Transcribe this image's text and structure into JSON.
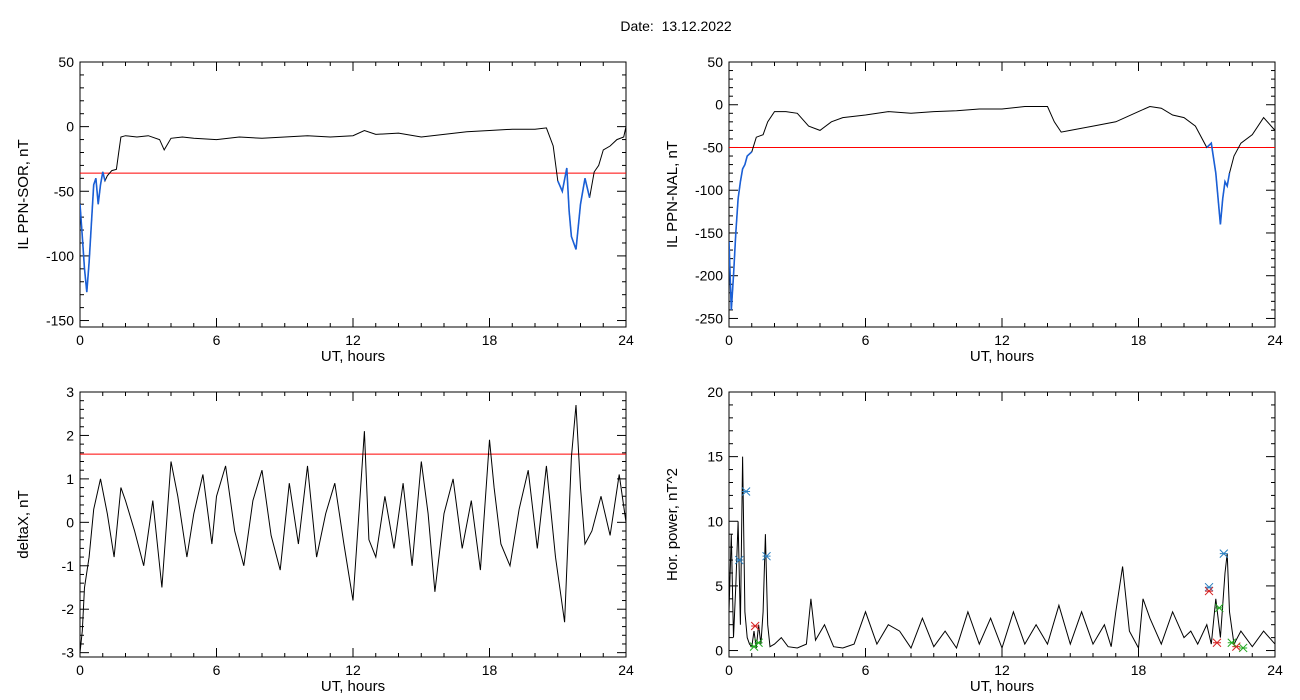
{
  "title": "Date:  13.12.2022",
  "colors": {
    "trace": "#000000",
    "threshold": "#ff0000",
    "highlight": "#1a5fd6",
    "marker_blue": "#2a7fc0",
    "marker_red": "#d62020",
    "marker_green": "#22aa22"
  },
  "chart_data": [
    {
      "type": "line",
      "ylabel": "IL PPN-SOR, nT",
      "xlabel": "UT, hours",
      "xlim": [
        0,
        24
      ],
      "ylim": [
        -155,
        50
      ],
      "xticks": [
        0,
        6,
        12,
        18,
        24
      ],
      "yticks": [
        -150,
        -100,
        -50,
        0,
        50
      ],
      "threshold": -36,
      "series": [
        {
          "x": [
            0,
            0.1,
            0.2,
            0.3,
            0.4,
            0.5,
            0.6,
            0.7,
            0.8,
            0.9,
            1.0,
            1.1,
            1.2,
            1.4,
            1.6,
            1.7,
            1.8,
            2.0,
            2.5,
            3.0,
            3.5,
            3.7,
            4.0,
            4.5,
            5.0,
            6.0,
            7.0,
            8.0,
            9.0,
            10.0,
            11.0,
            12.0,
            12.5,
            13.0,
            14.0,
            15.0,
            16.0,
            17.0,
            18.0,
            19.0,
            20.0,
            20.5,
            20.8,
            21.0,
            21.2,
            21.4,
            21.5,
            21.6,
            21.8,
            22.0,
            22.2,
            22.4,
            22.6,
            22.8,
            23.0,
            23.3,
            23.6,
            23.9,
            24.0
          ],
          "y": [
            -60,
            -85,
            -110,
            -128,
            -105,
            -75,
            -45,
            -40,
            -60,
            -45,
            -35,
            -42,
            -38,
            -34,
            -33,
            -20,
            -8,
            -7,
            -8,
            -7,
            -10,
            -18,
            -9,
            -8,
            -9,
            -10,
            -8,
            -9,
            -8,
            -7,
            -8,
            -7,
            -3,
            -6,
            -5,
            -8,
            -6,
            -4,
            -3,
            -2,
            -2,
            -1,
            -15,
            -42,
            -50,
            -32,
            -65,
            -85,
            -95,
            -60,
            -40,
            -55,
            -35,
            -30,
            -18,
            -15,
            -10,
            -8,
            0
          ]
        }
      ],
      "highlight_series": [
        {
          "x": [
            0,
            0.1,
            0.2,
            0.3,
            0.4,
            0.5,
            0.6,
            0.7,
            0.8,
            0.9,
            1.0,
            1.1
          ],
          "y": [
            -60,
            -85,
            -110,
            -128,
            -105,
            -75,
            -45,
            -40,
            -60,
            -45,
            -35,
            -42
          ]
        },
        {
          "x": [
            21.0,
            21.2,
            21.4,
            21.5,
            21.6,
            21.8,
            22.0,
            22.2,
            22.4
          ],
          "y": [
            -42,
            -50,
            -32,
            -65,
            -85,
            -95,
            -60,
            -40,
            -55
          ]
        }
      ]
    },
    {
      "type": "line",
      "ylabel": "IL PPN-NAL, nT",
      "xlabel": "UT, hours",
      "xlim": [
        0,
        24
      ],
      "ylim": [
        -260,
        50
      ],
      "xticks": [
        0,
        6,
        12,
        18,
        24
      ],
      "yticks": [
        -250,
        -200,
        -150,
        -100,
        -50,
        0,
        50
      ],
      "threshold": -50,
      "series": [
        {
          "x": [
            0,
            0.1,
            0.2,
            0.3,
            0.4,
            0.5,
            0.6,
            0.7,
            0.8,
            1.0,
            1.2,
            1.5,
            1.7,
            2.0,
            2.5,
            3.0,
            3.5,
            4.0,
            4.5,
            5.0,
            6.0,
            7.0,
            8.0,
            9.0,
            10.0,
            11.0,
            12.0,
            13.0,
            14.0,
            14.3,
            14.6,
            15.0,
            16.0,
            17.0,
            18.0,
            18.5,
            19.0,
            19.5,
            20.0,
            20.5,
            21.0,
            21.2,
            21.4,
            21.6,
            21.7,
            21.8,
            21.9,
            22.0,
            22.2,
            22.5,
            23.0,
            23.5,
            24.0
          ],
          "y": [
            -160,
            -240,
            -200,
            -150,
            -110,
            -90,
            -75,
            -70,
            -60,
            -55,
            -38,
            -35,
            -20,
            -8,
            -8,
            -10,
            -25,
            -30,
            -20,
            -15,
            -12,
            -8,
            -10,
            -8,
            -7,
            -5,
            -5,
            -2,
            -2,
            -20,
            -32,
            -30,
            -25,
            -20,
            -8,
            -2,
            -4,
            -12,
            -15,
            -25,
            -50,
            -45,
            -80,
            -140,
            -110,
            -90,
            -95,
            -80,
            -60,
            -45,
            -35,
            -15,
            -30
          ]
        }
      ],
      "highlight_series": [
        {
          "x": [
            0,
            0.1,
            0.2,
            0.3,
            0.4,
            0.5,
            0.6,
            0.7,
            0.8,
            1.0
          ],
          "y": [
            -160,
            -240,
            -200,
            -150,
            -110,
            -90,
            -75,
            -70,
            -60,
            -55
          ]
        },
        {
          "x": [
            21.0,
            21.2,
            21.4,
            21.6,
            21.7,
            21.8,
            21.9,
            22.0
          ],
          "y": [
            -50,
            -45,
            -80,
            -140,
            -110,
            -90,
            -95,
            -80
          ]
        }
      ]
    },
    {
      "type": "line",
      "ylabel": "deltaX, nT",
      "xlabel": "UT, hours",
      "xlim": [
        0,
        24
      ],
      "ylim": [
        -3.1,
        3
      ],
      "xticks": [
        0,
        6,
        12,
        18,
        24
      ],
      "yticks": [
        -3,
        -2,
        -1,
        0,
        1,
        2,
        3
      ],
      "threshold": 1.57,
      "series": [
        {
          "x": [
            0,
            0.1,
            0.2,
            0.4,
            0.6,
            0.9,
            1.2,
            1.5,
            1.8,
            2.0,
            2.4,
            2.8,
            3.2,
            3.6,
            4.0,
            4.3,
            4.7,
            5.0,
            5.4,
            5.8,
            6.0,
            6.4,
            6.8,
            7.2,
            7.6,
            8.0,
            8.4,
            8.8,
            9.2,
            9.6,
            10.0,
            10.4,
            10.8,
            11.2,
            11.6,
            12.0,
            12.3,
            12.5,
            12.7,
            13.0,
            13.4,
            13.8,
            14.2,
            14.6,
            15.0,
            15.3,
            15.6,
            16.0,
            16.4,
            16.8,
            17.2,
            17.6,
            18.0,
            18.2,
            18.5,
            18.9,
            19.3,
            19.7,
            20.1,
            20.5,
            20.9,
            21.3,
            21.6,
            21.8,
            22.0,
            22.2,
            22.5,
            22.9,
            23.3,
            23.7,
            24.0
          ],
          "y": [
            -3.0,
            -2.5,
            -1.5,
            -0.8,
            0.3,
            1.0,
            0.2,
            -0.8,
            0.8,
            0.5,
            -0.2,
            -1.0,
            0.5,
            -1.5,
            1.4,
            0.6,
            -0.8,
            0.2,
            1.1,
            -0.5,
            0.6,
            1.3,
            -0.2,
            -1.0,
            0.5,
            1.2,
            -0.3,
            -1.1,
            0.9,
            -0.5,
            1.3,
            -0.8,
            0.2,
            0.9,
            -0.5,
            -1.8,
            0.5,
            2.1,
            -0.4,
            -0.8,
            0.6,
            -0.6,
            0.9,
            -1.0,
            1.4,
            0.2,
            -1.6,
            0.2,
            1.0,
            -0.6,
            0.5,
            -1.1,
            1.9,
            0.8,
            -0.5,
            -1.0,
            0.3,
            1.2,
            -0.6,
            1.3,
            -0.8,
            -2.3,
            1.5,
            2.7,
            0.8,
            -0.5,
            -0.2,
            0.6,
            -0.3,
            1.1,
            0.0
          ]
        }
      ]
    },
    {
      "type": "line",
      "ylabel": "Hor. power, nT^2",
      "xlabel": "UT, hours",
      "xlim": [
        0,
        24
      ],
      "ylim": [
        -0.5,
        20
      ],
      "xticks": [
        0,
        6,
        12,
        18,
        24
      ],
      "yticks": [
        0,
        5,
        10,
        15,
        20
      ],
      "series": [
        {
          "x": [
            0,
            0.1,
            0.2,
            0.3,
            0.4,
            0.5,
            0.6,
            0.7,
            0.8,
            0.9,
            1.0,
            1.1,
            1.2,
            1.3,
            1.4,
            1.5,
            1.6,
            1.7,
            1.8,
            2.0,
            2.3,
            2.6,
            3.0,
            3.4,
            3.6,
            3.8,
            4.2,
            4.6,
            5.0,
            5.5,
            6.0,
            6.5,
            7.0,
            7.5,
            8.0,
            8.5,
            9.0,
            9.5,
            10.0,
            10.5,
            11.0,
            11.5,
            12.0,
            12.5,
            13.0,
            13.5,
            14.0,
            14.5,
            15.0,
            15.5,
            16.0,
            16.5,
            16.8,
            17.0,
            17.3,
            17.6,
            18.0,
            18.2,
            18.5,
            19.0,
            19.5,
            20.0,
            20.3,
            20.6,
            21.0,
            21.2,
            21.4,
            21.6,
            21.8,
            21.9,
            22.0,
            22.2,
            22.5,
            23.0,
            23.5,
            24.0
          ],
          "y": [
            3,
            9,
            1,
            5,
            10,
            2,
            15,
            3,
            1,
            0.5,
            0.3,
            1.5,
            0.2,
            2,
            0.5,
            3,
            9,
            2,
            0.3,
            0.5,
            1,
            0.3,
            0.2,
            0.5,
            4,
            0.8,
            2,
            0.3,
            0.2,
            0.5,
            3,
            0.5,
            2,
            1.5,
            0.2,
            2.5,
            0.3,
            1.5,
            0.2,
            3,
            0.5,
            2.5,
            0.2,
            3,
            0.5,
            2,
            0.5,
            3.5,
            0.5,
            3,
            0.5,
            2,
            0.3,
            3,
            6.5,
            1.5,
            0.2,
            4,
            2.5,
            0.5,
            3,
            1,
            1.5,
            0.5,
            2,
            0.5,
            4,
            1,
            6,
            7.5,
            3,
            0.5,
            1.5,
            0.3,
            1.5,
            0.5
          ]
        }
      ],
      "markers": {
        "blue": {
          "x": [
            0.45,
            0.75,
            1.65,
            21.1,
            21.75
          ],
          "y": [
            7,
            12.3,
            7.3,
            4.9,
            7.5
          ]
        },
        "red": {
          "x": [
            1.15,
            21.1,
            21.45,
            22.3
          ],
          "y": [
            1.9,
            4.6,
            0.6,
            0.3
          ]
        },
        "green": {
          "x": [
            1.1,
            1.3,
            21.55,
            22.1,
            22.6
          ],
          "y": [
            0.3,
            0.6,
            3.3,
            0.6,
            0.2
          ]
        }
      }
    }
  ]
}
